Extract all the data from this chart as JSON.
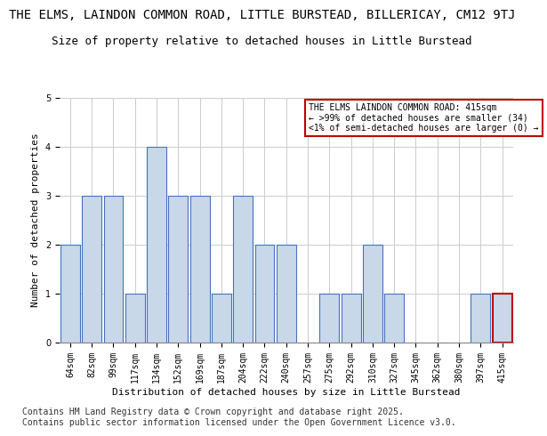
{
  "title": "THE ELMS, LAINDON COMMON ROAD, LITTLE BURSTEAD, BILLERICAY, CM12 9TJ",
  "subtitle": "Size of property relative to detached houses in Little Burstead",
  "xlabel": "Distribution of detached houses by size in Little Burstead",
  "ylabel": "Number of detached properties",
  "categories": [
    "64sqm",
    "82sqm",
    "99sqm",
    "117sqm",
    "134sqm",
    "152sqm",
    "169sqm",
    "187sqm",
    "204sqm",
    "222sqm",
    "240sqm",
    "257sqm",
    "275sqm",
    "292sqm",
    "310sqm",
    "327sqm",
    "345sqm",
    "362sqm",
    "380sqm",
    "397sqm",
    "415sqm"
  ],
  "values": [
    2,
    3,
    3,
    1,
    4,
    3,
    3,
    1,
    3,
    2,
    2,
    0,
    1,
    1,
    2,
    1,
    0,
    0,
    0,
    1,
    1
  ],
  "bar_color": "#c8d8e8",
  "bar_edge_color": "#4472c4",
  "highlight_index": 20,
  "highlight_bar_edge_color": "#c00000",
  "annotation_text": "THE ELMS LAINDON COMMON ROAD: 415sqm\n← >99% of detached houses are smaller (34)\n<1% of semi-detached houses are larger (0) →",
  "annotation_box_edge_color": "#c00000",
  "ylim": [
    0,
    5
  ],
  "yticks": [
    0,
    1,
    2,
    3,
    4,
    5
  ],
  "footer_text": "Contains HM Land Registry data © Crown copyright and database right 2025.\nContains public sector information licensed under the Open Government Licence v3.0.",
  "title_fontsize": 10,
  "subtitle_fontsize": 9,
  "axis_label_fontsize": 8,
  "tick_fontsize": 7,
  "annotation_fontsize": 7,
  "footer_fontsize": 7,
  "bg_color": "#ffffff",
  "grid_color": "#cccccc"
}
